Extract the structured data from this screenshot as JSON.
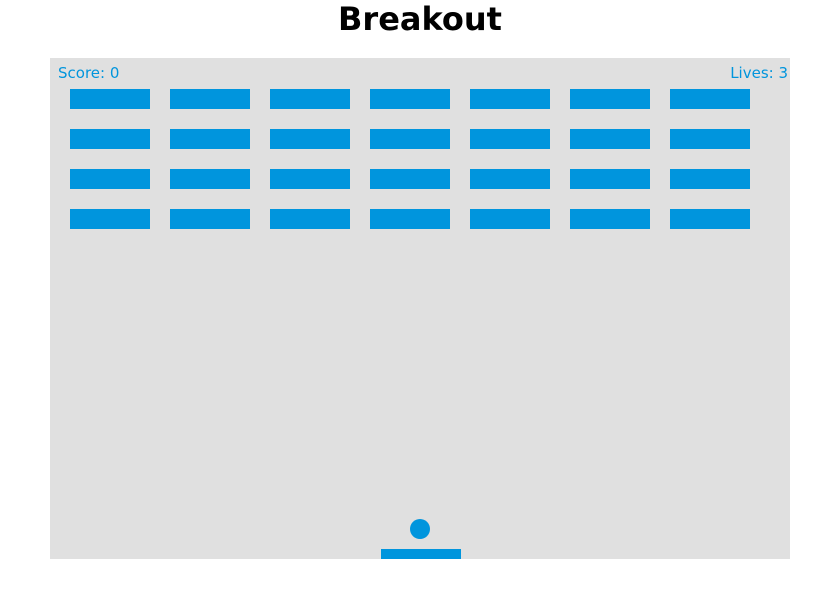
{
  "page": {
    "title": "Breakout"
  },
  "colors": {
    "accent": "#0095DD",
    "canvas_background": "#E0E0E0",
    "title": "#000000"
  },
  "hud": {
    "score_text": "Score: 0",
    "lives_text": "Lives: 3"
  },
  "game": {
    "brick_rows": 4,
    "brick_columns": 7,
    "score": 0,
    "lives": 3
  },
  "icons": {
    "ball": "ball-icon",
    "paddle": "paddle-icon"
  }
}
